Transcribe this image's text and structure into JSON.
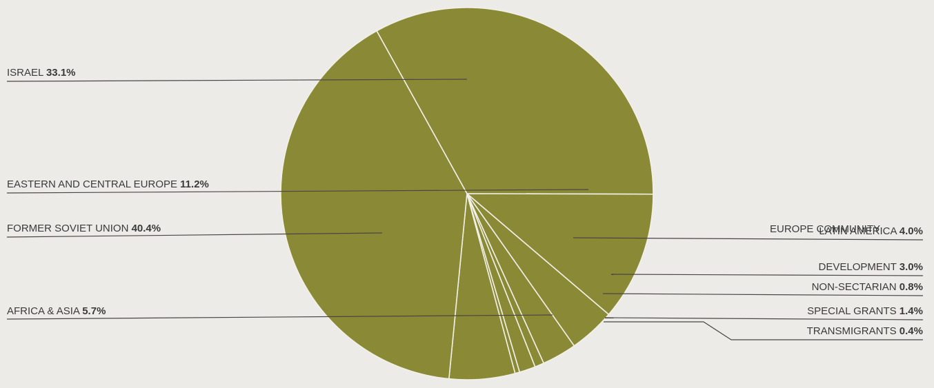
{
  "chart_data": {
    "type": "pie",
    "colors": {
      "slice_fill": "#8a8a36",
      "slice_border": "#f2f0e6",
      "leader_line": "#4a4446",
      "label_text": "#3a3a3a"
    },
    "slices": [
      {
        "label": "ISRAEL",
        "label_line2": "",
        "value": 33.1,
        "value_label": "33.1%"
      },
      {
        "label": "EASTERN AND CENTRAL EUROPE",
        "label_line2": "",
        "value": 11.2,
        "value_label": "11.2%"
      },
      {
        "label": "LATIN AMERICA",
        "label_line2": "",
        "value": 4.0,
        "value_label": "4.0%"
      },
      {
        "label": "EUROPE COMMUNITY",
        "label_line2": "DEVELOPMENT",
        "value": 3.0,
        "value_label": "3.0%"
      },
      {
        "label": "NON-SECTARIAN",
        "label_line2": "",
        "value": 0.8,
        "value_label": "0.8%"
      },
      {
        "label": "SPECIAL GRANTS",
        "label_line2": "",
        "value": 1.4,
        "value_label": "1.4%"
      },
      {
        "label": "TRANSMIGRANTS",
        "label_line2": "",
        "value": 0.4,
        "value_label": "0.4%"
      },
      {
        "label": "AFRICA & ASIA",
        "label_line2": "",
        "value": 5.7,
        "value_label": "5.7%"
      },
      {
        "label": "FORMER SOVIET UNION",
        "label_line2": "",
        "value": 40.4,
        "value_label": "40.4%"
      }
    ]
  }
}
